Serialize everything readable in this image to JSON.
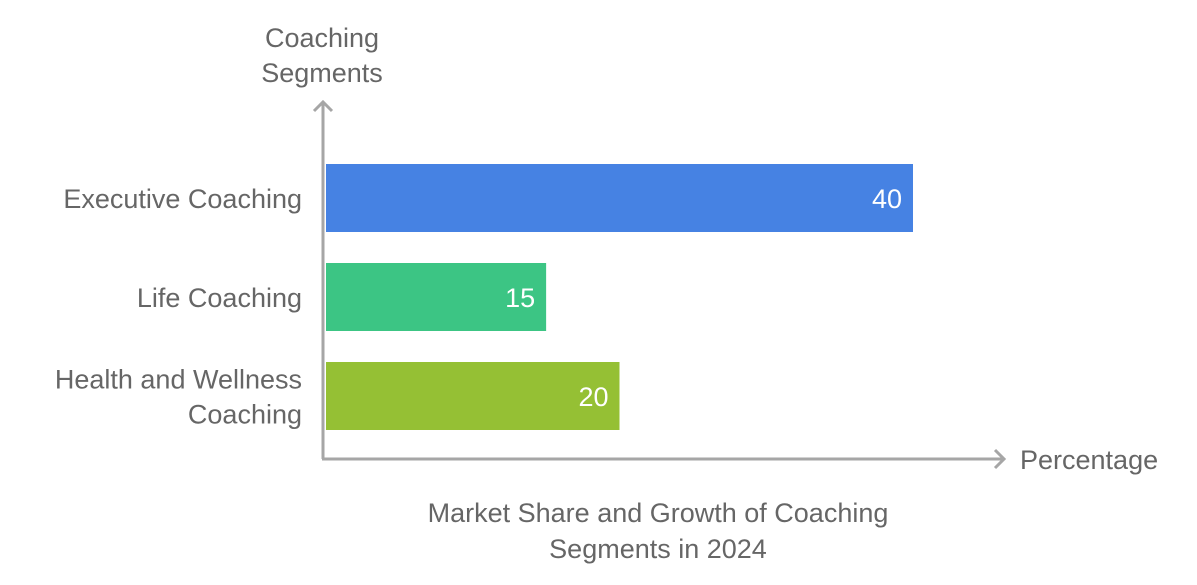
{
  "chart_data": {
    "type": "bar",
    "orientation": "horizontal",
    "title": "Market Share and Growth of Coaching Segments in 2024",
    "title_lines": [
      "Market Share and Growth of Coaching",
      "Segments in 2024"
    ],
    "ylabel_lines": [
      "Coaching",
      "Segments"
    ],
    "xlabel": "Percentage",
    "categories": [
      "Executive Coaching",
      "Life Coaching",
      "Health and Wellness Coaching"
    ],
    "category_lines": [
      [
        "Executive Coaching"
      ],
      [
        "Life Coaching"
      ],
      [
        "Health and Wellness",
        "Coaching"
      ]
    ],
    "values": [
      40,
      15,
      20
    ],
    "data_labels": [
      "40",
      "15",
      "20"
    ],
    "colors": [
      "#4682E3",
      "#3CC584",
      "#95C034"
    ],
    "axis_color": "#A6A6A6",
    "xlim": [
      0,
      40
    ],
    "grid": false
  }
}
